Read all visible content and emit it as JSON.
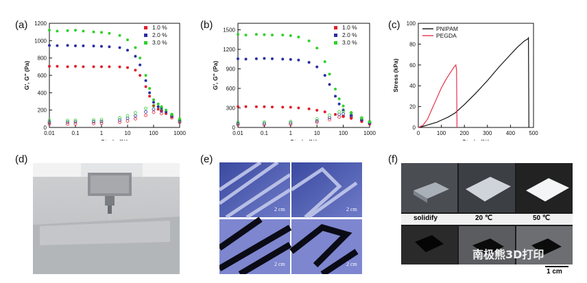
{
  "panels": {
    "a": "(a)",
    "b": "(b)",
    "c": "(c)",
    "d": "(d)",
    "e": "(e)",
    "f": "(f)"
  },
  "chart_data": [
    {
      "id": "a",
      "type": "scatter",
      "xlabel": "Strain (%)",
      "ylabel": "G', G\" (Pa)",
      "xscale": "log",
      "xlim": [
        0.01,
        1000
      ],
      "ylim": [
        0,
        1200
      ],
      "xticks": [
        "0.01",
        "0.1",
        "1",
        "10",
        "100",
        "1000"
      ],
      "yticks": [
        0,
        200,
        400,
        600,
        800,
        1000,
        1200
      ],
      "legend_position": "top-right",
      "series": [
        {
          "name": "1.0 %",
          "color": "#e0202a",
          "storage": {
            "x": [
              0.01,
              0.02,
              0.05,
              0.1,
              0.2,
              0.5,
              1,
              2,
              5,
              10,
              20,
              30,
              50,
              70,
              100,
              150,
              200,
              300,
              500,
              1000
            ],
            "y": [
              705,
              705,
              700,
              705,
              700,
              700,
              700,
              700,
              698,
              690,
              660,
              600,
              470,
              360,
              250,
              210,
              190,
              160,
              120,
              80
            ]
          },
          "loss": {
            "x": [
              0.01,
              0.05,
              0.1,
              0.5,
              1,
              5,
              10,
              20,
              50,
              100,
              200,
              500,
              1000
            ],
            "y": [
              40,
              40,
              42,
              45,
              48,
              60,
              75,
              100,
              140,
              175,
              160,
              110,
              60
            ]
          }
        },
        {
          "name": "2.0 %",
          "color": "#2b2fa3",
          "storage": {
            "x": [
              0.01,
              0.02,
              0.05,
              0.1,
              0.2,
              0.5,
              1,
              2,
              5,
              10,
              20,
              30,
              50,
              70,
              100,
              150,
              200,
              300,
              500,
              1000
            ],
            "y": [
              945,
              942,
              945,
              940,
              940,
              938,
              935,
              930,
              920,
              890,
              820,
              720,
              540,
              400,
              290,
              240,
              215,
              180,
              140,
              90
            ]
          },
          "loss": {
            "x": [
              0.01,
              0.05,
              0.1,
              0.5,
              1,
              5,
              10,
              20,
              50,
              100,
              200,
              500,
              1000
            ],
            "y": [
              60,
              62,
              65,
              68,
              70,
              85,
              105,
              135,
              180,
              210,
              190,
              130,
              70
            ]
          }
        },
        {
          "name": "3.0 %",
          "color": "#2fd12b",
          "storage": {
            "x": [
              0.01,
              0.02,
              0.05,
              0.1,
              0.2,
              0.5,
              1,
              2,
              5,
              10,
              20,
              30,
              50,
              70,
              100,
              150,
              200,
              300,
              500,
              1000
            ],
            "y": [
              1120,
              1110,
              1115,
              1120,
              1110,
              1100,
              1095,
              1085,
              1060,
              1010,
              920,
              800,
              600,
              450,
              320,
              270,
              240,
              200,
              150,
              100
            ]
          },
          "loss": {
            "x": [
              0.01,
              0.05,
              0.1,
              0.5,
              1,
              5,
              10,
              20,
              50,
              100,
              200,
              500,
              1000
            ],
            "y": [
              80,
              80,
              82,
              85,
              90,
              110,
              135,
              170,
              220,
              250,
              225,
              150,
              85
            ]
          }
        }
      ]
    },
    {
      "id": "b",
      "type": "scatter",
      "xlabel": "Strain (%)",
      "ylabel": "G', G\" (Pa)",
      "xscale": "log",
      "xlim": [
        0.01,
        1000
      ],
      "ylim": [
        0,
        1600
      ],
      "xticks": [
        "0.01",
        "0.1",
        "1",
        "10",
        "100",
        "1000"
      ],
      "yticks": [
        0,
        300,
        600,
        900,
        1200,
        1500
      ],
      "legend_position": "top-right",
      "series": [
        {
          "name": "1.0 %",
          "color": "#e0202a",
          "storage": {
            "x": [
              0.01,
              0.02,
              0.05,
              0.1,
              0.2,
              0.5,
              1,
              2,
              5,
              10,
              20,
              50,
              100,
              200,
              500,
              1000
            ],
            "y": [
              320,
              320,
              318,
              318,
              315,
              312,
              310,
              300,
              285,
              265,
              240,
              200,
              170,
              140,
              90,
              50
            ]
          },
          "loss": {
            "x": [
              0.01,
              0.1,
              1,
              10,
              30,
              70,
              100,
              200,
              500,
              1000
            ],
            "y": [
              40,
              42,
              50,
              80,
              120,
              160,
              170,
              150,
              100,
              60
            ]
          }
        },
        {
          "name": "2.0 %",
          "color": "#2b2fa3",
          "storage": {
            "x": [
              0.01,
              0.02,
              0.05,
              0.1,
              0.2,
              0.5,
              1,
              2,
              5,
              10,
              20,
              30,
              50,
              70,
              100,
              200,
              500,
              1000
            ],
            "y": [
              1055,
              1050,
              1055,
              1060,
              1055,
              1050,
              1045,
              1035,
              1000,
              930,
              800,
              660,
              480,
              360,
              270,
              190,
              120,
              70
            ]
          },
          "loss": {
            "x": [
              0.01,
              0.1,
              1,
              10,
              30,
              70,
              100,
              200,
              500,
              1000
            ],
            "y": [
              60,
              62,
              70,
              100,
              150,
              200,
              210,
              180,
              120,
              70
            ]
          }
        },
        {
          "name": "3.0 %",
          "color": "#2fd12b",
          "storage": {
            "x": [
              0.01,
              0.02,
              0.05,
              0.1,
              0.2,
              0.5,
              1,
              2,
              5,
              10,
              20,
              30,
              50,
              70,
              100,
              200,
              500,
              1000
            ],
            "y": [
              1430,
              1420,
              1430,
              1425,
              1420,
              1420,
              1410,
              1390,
              1330,
              1220,
              1010,
              820,
              590,
              440,
              330,
              230,
              140,
              80
            ]
          },
          "loss": {
            "x": [
              0.01,
              0.1,
              1,
              10,
              30,
              70,
              100,
              200,
              500,
              1000
            ],
            "y": [
              80,
              82,
              90,
              130,
              190,
              240,
              255,
              220,
              150,
              90
            ]
          }
        }
      ]
    },
    {
      "id": "c",
      "type": "line",
      "xlabel": "Strain (%)",
      "ylabel": "Stress (kPa)",
      "xlim": [
        0,
        500
      ],
      "ylim": [
        0,
        100
      ],
      "xticks": [
        0,
        100,
        200,
        300,
        400,
        500
      ],
      "yticks": [
        0,
        20,
        40,
        60,
        80,
        100
      ],
      "legend_position": "top-left",
      "series": [
        {
          "name": "PNIPAM",
          "color": "#111111",
          "x": [
            0,
            20,
            50,
            80,
            100,
            130,
            160,
            200,
            250,
            300,
            350,
            400,
            430,
            460,
            475,
            478,
            480
          ],
          "y": [
            0,
            1,
            3,
            5,
            7,
            10,
            14,
            22,
            33,
            45,
            58,
            70,
            77,
            83,
            85,
            86,
            0
          ]
        },
        {
          "name": "PEGDA",
          "color": "#e8304a",
          "x": [
            0,
            20,
            40,
            60,
            80,
            100,
            120,
            140,
            155,
            163,
            166,
            168
          ],
          "y": [
            0,
            2,
            8,
            18,
            28,
            38,
            46,
            53,
            58,
            60,
            55,
            0
          ]
        }
      ]
    }
  ],
  "photos": {
    "e_scale": [
      "2 cm",
      "2 cm",
      "2 cm",
      "2 cm"
    ],
    "f_captions": [
      "solidify",
      "20 ℃",
      "50 ℃"
    ],
    "watermark": "南极熊3D打印",
    "scale_bar": "1 cm"
  }
}
